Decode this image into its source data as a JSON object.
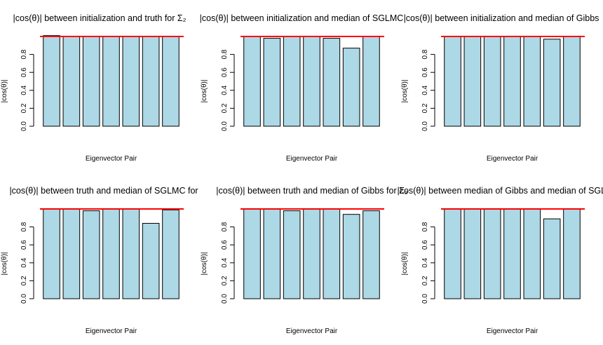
{
  "chart_data": [
    {
      "type": "bar",
      "title": "|cos(θ)| between initialization and truth for Σ₂",
      "xlabel": "Eigenvector Pair",
      "ylabel": "|cos(θ)|",
      "ylim": [
        0,
        1
      ],
      "yticks": [
        "0.0",
        "0.2",
        "0.4",
        "0.6",
        "0.8"
      ],
      "reference_line": 1.0,
      "values": [
        1.01,
        1.0,
        1.0,
        1.0,
        1.0,
        1.0,
        1.0
      ]
    },
    {
      "type": "bar",
      "title": "|cos(θ)| between initialization and median of SGLMC",
      "xlabel": "Eigenvector Pair",
      "ylabel": "|cos(θ)|",
      "ylim": [
        0,
        1
      ],
      "yticks": [
        "0.0",
        "0.2",
        "0.4",
        "0.6",
        "0.8"
      ],
      "reference_line": 1.0,
      "values": [
        1.0,
        0.98,
        1.0,
        1.0,
        0.98,
        0.87,
        1.0
      ]
    },
    {
      "type": "bar",
      "title": "|cos(θ)| between initialization and median of Gibbs",
      "xlabel": "Eigenvector Pair",
      "ylabel": "|cos(θ)|",
      "ylim": [
        0,
        1
      ],
      "yticks": [
        "0.0",
        "0.2",
        "0.4",
        "0.6",
        "0.8"
      ],
      "reference_line": 1.0,
      "values": [
        1.0,
        1.0,
        1.0,
        1.0,
        1.0,
        0.97,
        1.0
      ]
    },
    {
      "type": "bar",
      "title": "|cos(θ)| between truth and median of SGLMC for",
      "xlabel": "Eigenvector Pair",
      "ylabel": "|cos(θ)|",
      "ylim": [
        0,
        1
      ],
      "yticks": [
        "0.0",
        "0.2",
        "0.4",
        "0.6",
        "0.8"
      ],
      "reference_line": 1.0,
      "values": [
        1.0,
        1.0,
        0.98,
        1.0,
        1.0,
        0.84,
        0.99
      ]
    },
    {
      "type": "bar",
      "title": "|cos(θ)| between truth and median of Gibbs for Σ₂",
      "xlabel": "Eigenvector Pair",
      "ylabel": "|cos(θ)|",
      "ylim": [
        0,
        1
      ],
      "yticks": [
        "0.0",
        "0.2",
        "0.4",
        "0.6",
        "0.8"
      ],
      "reference_line": 1.0,
      "values": [
        1.0,
        1.0,
        0.98,
        1.0,
        1.0,
        0.94,
        0.98
      ]
    },
    {
      "type": "bar",
      "title": "|cos(θ)| between median of Gibbs and median of SGLMC",
      "xlabel": "Eigenvector Pair",
      "ylabel": "|cos(θ)|",
      "ylim": [
        0,
        1
      ],
      "yticks": [
        "0.0",
        "0.2",
        "0.4",
        "0.6",
        "0.8"
      ],
      "reference_line": 1.0,
      "values": [
        1.0,
        1.0,
        1.0,
        1.0,
        1.0,
        0.89,
        1.0
      ]
    }
  ],
  "colors": {
    "bar_fill": "#ADD8E6",
    "bar_stroke": "#000000",
    "reference_line": "#FF0000",
    "text": "#000000"
  }
}
